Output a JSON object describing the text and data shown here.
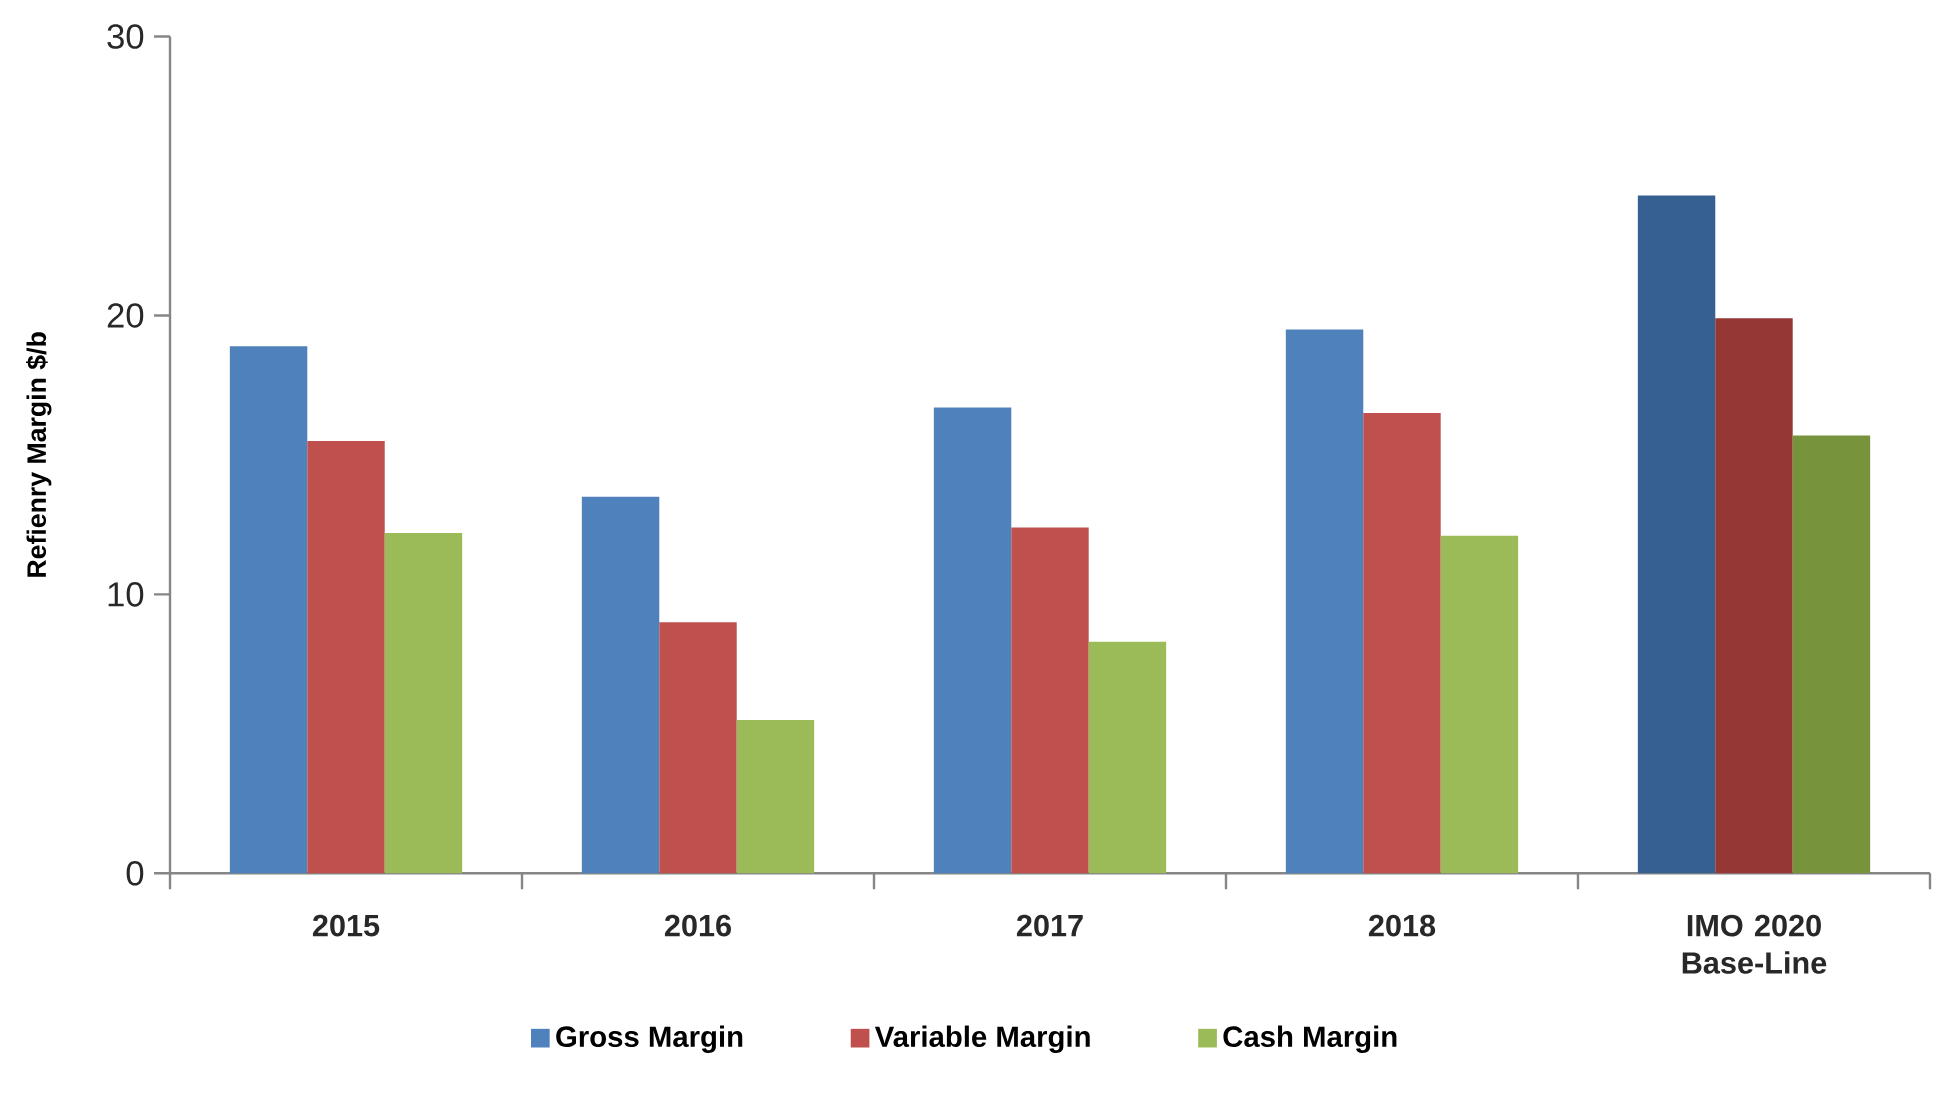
{
  "chart_data": {
    "type": "bar",
    "ylabel": "Refienry Margin $/b",
    "categories": [
      "2015",
      "2016",
      "2017",
      "2018",
      "IMO 2020 Base-Line"
    ],
    "series": [
      {
        "name": "Gross Margin",
        "color": "#4f81bd",
        "colors": [
          "#4f81bd",
          "#4f81bd",
          "#4f81bd",
          "#4f81bd",
          "#366092"
        ],
        "values": [
          18.9,
          13.5,
          16.7,
          19.5,
          24.3
        ]
      },
      {
        "name": "Variable Margin",
        "color": "#c0504d",
        "colors": [
          "#c0504d",
          "#c0504d",
          "#c0504d",
          "#c0504d",
          "#953735"
        ],
        "values": [
          15.5,
          9.0,
          12.4,
          16.5,
          19.9
        ]
      },
      {
        "name": "Cash Margin",
        "color": "#9bbb59",
        "colors": [
          "#9bbb59",
          "#9bbb59",
          "#9bbb59",
          "#9bbb59",
          "#77933c"
        ],
        "values": [
          12.2,
          5.5,
          8.3,
          12.1,
          15.7
        ]
      }
    ],
    "ylim": [
      0,
      30
    ],
    "yticks": [
      0,
      10,
      20,
      30
    ],
    "legend": "bottom"
  }
}
